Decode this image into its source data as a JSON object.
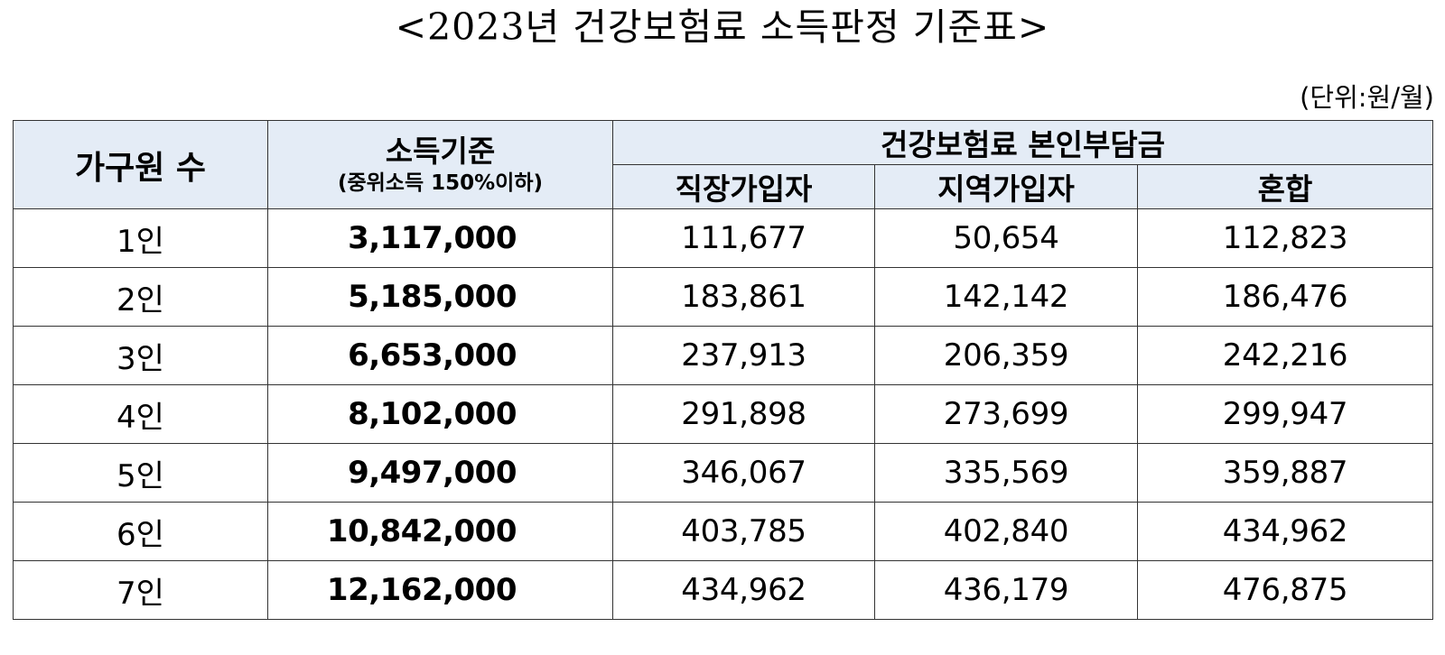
{
  "title": "<2023년 건강보험료 소득판정 기준표>",
  "unit": "(단위:원/월)",
  "table": {
    "headers": {
      "household": "가구원 수",
      "income_criteria": "소득기준",
      "income_criteria_note": "(중위소득 150%이하)",
      "premium_group": "건강보험료 본인부담금",
      "employee": "직장가입자",
      "regional": "지역가입자",
      "mixed": "혼합"
    },
    "rows": [
      {
        "household": "1인",
        "income": "3,117,000",
        "employee": "111,677",
        "regional": "50,654",
        "mixed": "112,823"
      },
      {
        "household": "2인",
        "income": "5,185,000",
        "employee": "183,861",
        "regional": "142,142",
        "mixed": "186,476"
      },
      {
        "household": "3인",
        "income": "6,653,000",
        "employee": "237,913",
        "regional": "206,359",
        "mixed": "242,216"
      },
      {
        "household": "4인",
        "income": "8,102,000",
        "employee": "291,898",
        "regional": "273,699",
        "mixed": "299,947"
      },
      {
        "household": "5인",
        "income": "9,497,000",
        "employee": "346,067",
        "regional": "335,569",
        "mixed": "359,887"
      },
      {
        "household": "6인",
        "income": "10,842,000",
        "employee": "403,785",
        "regional": "402,840",
        "mixed": "434,962"
      },
      {
        "household": "7인",
        "income": "12,162,000",
        "employee": "434,962",
        "regional": "436,179",
        "mixed": "476,875"
      }
    ]
  }
}
